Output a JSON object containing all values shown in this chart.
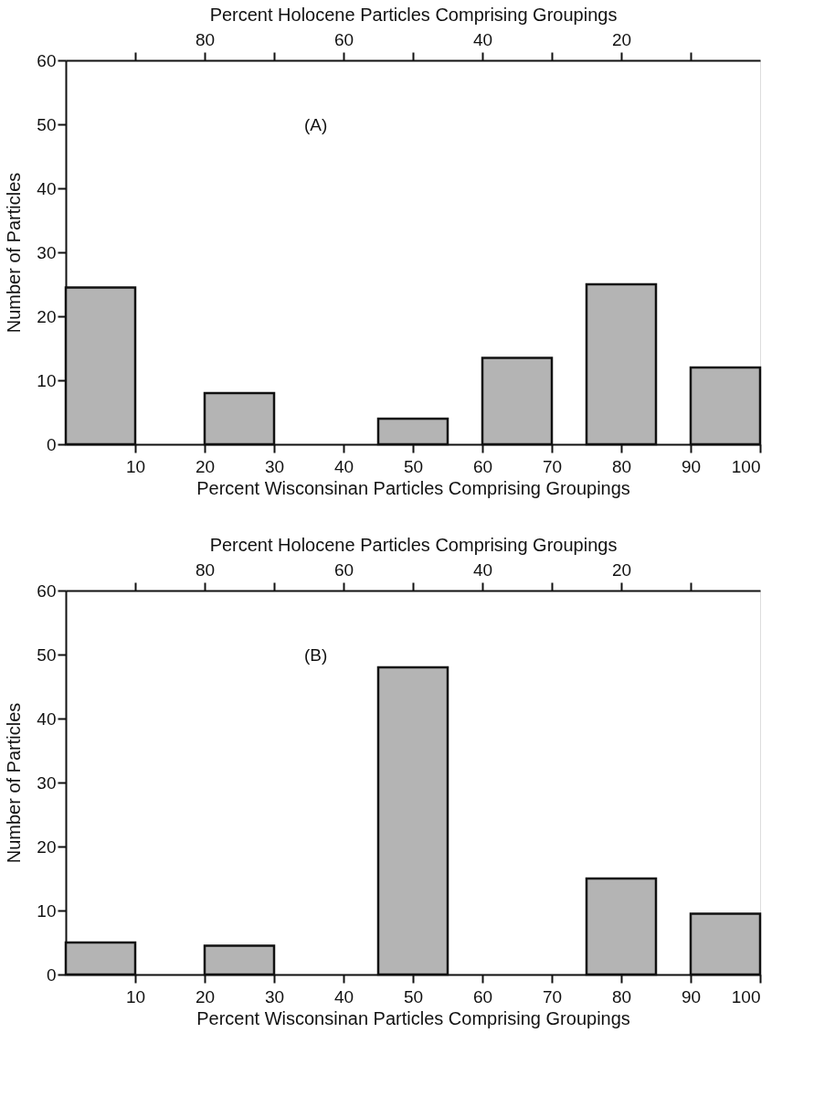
{
  "chart_data": [
    {
      "type": "histogram",
      "x2label": "Percent Holocene Particles Comprising Groupings",
      "xlabel": "Percent Wisconsinan Particles Comprising Groupings",
      "ylabel": "Number of Particles",
      "annotations": [
        "(A)"
      ],
      "bins": [
        0,
        10,
        20,
        30,
        45,
        55,
        60,
        70,
        75,
        85,
        90,
        100
      ],
      "values": [
        24.5,
        0,
        8,
        0,
        4,
        0,
        13.5,
        0,
        25,
        0,
        12
      ],
      "color": "#b4b4b4",
      "xlim": [
        0,
        100
      ],
      "xticks": [
        10,
        20,
        30,
        40,
        50,
        60,
        70,
        80,
        90,
        100
      ],
      "x2lim": [
        100,
        0
      ],
      "x2ticks": [
        {
          "value": 90,
          "label": null
        },
        80,
        {
          "value": 70,
          "label": null
        },
        60,
        {
          "value": 50,
          "label": null
        },
        40,
        {
          "value": 30,
          "label": null
        },
        20,
        {
          "value": 10,
          "label": null
        }
      ],
      "ylim": [
        0,
        60
      ],
      "yticks": [
        0,
        10,
        20,
        30,
        40,
        50,
        60
      ],
      "grid": false
    },
    {
      "type": "histogram",
      "x2label": "Percent Holocene Particles Comprising Groupings",
      "xlabel": "Percent Wisconsinan Particles Comprising Groupings",
      "ylabel": "Number of Particles",
      "annotations": [
        "(B)"
      ],
      "bins": [
        0,
        10,
        20,
        30,
        45,
        55,
        75,
        85,
        90,
        100
      ],
      "values": [
        5,
        0,
        4.5,
        0,
        48,
        0,
        15,
        0,
        9.5
      ],
      "color": "#b4b4b4",
      "xlim": [
        0,
        100
      ],
      "xticks": [
        10,
        20,
        30,
        40,
        50,
        60,
        70,
        80,
        90,
        100
      ],
      "x2lim": [
        100,
        0
      ],
      "x2ticks": [
        {
          "value": 90,
          "label": null
        },
        80,
        {
          "value": 70,
          "label": null
        },
        60,
        {
          "value": 50,
          "label": null
        },
        40,
        {
          "value": 30,
          "label": null
        },
        20,
        {
          "value": 10,
          "label": null
        }
      ],
      "ylim": [
        0,
        60
      ],
      "yticks": [
        0,
        10,
        20,
        30,
        40,
        50,
        60
      ],
      "grid": false
    }
  ]
}
